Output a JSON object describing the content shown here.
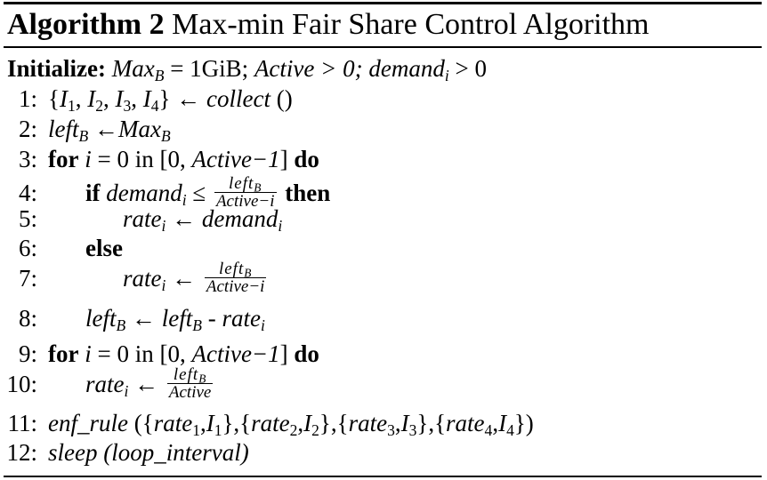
{
  "algorithm": {
    "label": "Algorithm 2",
    "name": "Max-min Fair Share Control Algorithm"
  },
  "init": {
    "keyword": "Initialize:",
    "maxb_var": "Max",
    "maxb_sub": "B",
    "maxb_value": " = 1GiB; ",
    "active_cond": "Active > 0; ",
    "demand_var": "demand",
    "demand_sub": "i",
    "demand_cond": " > 0"
  },
  "lines": [
    {
      "num": "1:"
    },
    {
      "num": "2:"
    },
    {
      "num": "3:"
    },
    {
      "num": "4:"
    },
    {
      "num": "5:"
    },
    {
      "num": "6:"
    },
    {
      "num": "7:"
    },
    {
      "num": "8:"
    },
    {
      "num": "9:"
    },
    {
      "num": "10:"
    },
    {
      "num": "11:"
    },
    {
      "num": "12:"
    }
  ],
  "text": {
    "collect": "collect",
    "left": "left",
    "max": "Max",
    "sub_B": "B",
    "sub_i": "i",
    "for_kw": "for",
    "do_kw": "do",
    "if_kw": "if",
    "then_kw": "then",
    "else_kw": "else",
    "demand": "demand",
    "rate": "rate",
    "active": "Active",
    "active_minus_i": "Active−i",
    "active_minus_1": "Active−1",
    "enf_rule": "enf_rule",
    "sleep": "sleep (loop_interval)"
  }
}
